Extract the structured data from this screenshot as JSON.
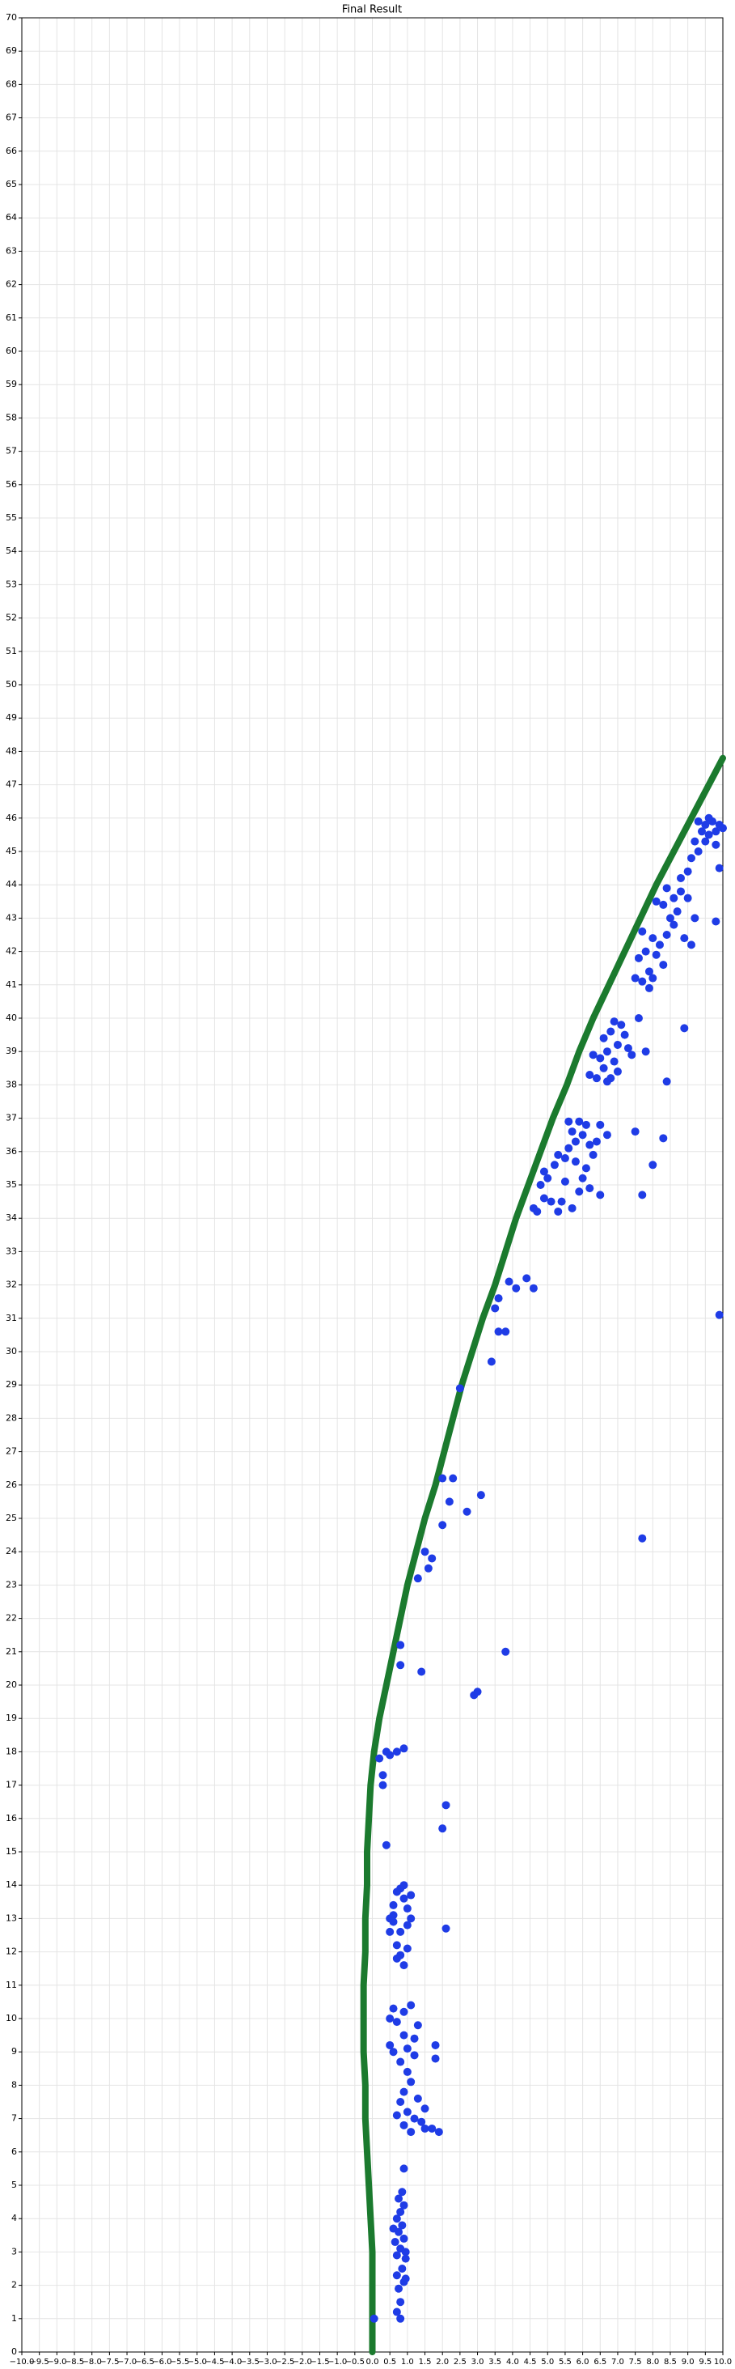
{
  "chart_data": {
    "type": "scatter",
    "title": "Final Result",
    "grid": true,
    "xlim": [
      -10,
      10
    ],
    "ylim": [
      0,
      70
    ],
    "xticks": [
      {
        "value": -10,
        "label": "−10.0"
      },
      {
        "value": -9.5,
        "label": "−9.5"
      },
      {
        "value": -9,
        "label": "−9.0"
      },
      {
        "value": -8.5,
        "label": "−8.5"
      },
      {
        "value": -8,
        "label": "−8.0"
      },
      {
        "value": -7.5,
        "label": "−7.5"
      },
      {
        "value": -7,
        "label": "−7.0"
      },
      {
        "value": -6.5,
        "label": "−6.5"
      },
      {
        "value": -6,
        "label": "−6.0"
      },
      {
        "value": -5.5,
        "label": "−5.5"
      },
      {
        "value": -5,
        "label": "−5.0"
      },
      {
        "value": -4.5,
        "label": "−4.5"
      },
      {
        "value": -4,
        "label": "−4.0"
      },
      {
        "value": -3.5,
        "label": "−3.5"
      },
      {
        "value": -3,
        "label": "−3.0"
      },
      {
        "value": -2.5,
        "label": "−2.5"
      },
      {
        "value": -2,
        "label": "−2.0"
      },
      {
        "value": -1.5,
        "label": "−1.5"
      },
      {
        "value": -1,
        "label": "−1.0"
      },
      {
        "value": -0.5,
        "label": "−0.5"
      },
      {
        "value": 0,
        "label": "0.0"
      },
      0.5,
      {
        "value": 1,
        "label": "1.0"
      },
      1.5,
      {
        "value": 2,
        "label": "2.0"
      },
      2.5,
      {
        "value": 3,
        "label": "3.0"
      },
      3.5,
      {
        "value": 4,
        "label": "4.0"
      },
      4.5,
      {
        "value": 5,
        "label": "5.0"
      },
      5.5,
      {
        "value": 6,
        "label": "6.0"
      },
      6.5,
      {
        "value": 7,
        "label": "7.0"
      },
      7.5,
      {
        "value": 8,
        "label": "8.0"
      },
      8.5,
      {
        "value": 9,
        "label": "9.0"
      },
      9.5,
      {
        "value": 10,
        "label": "10.0"
      }
    ],
    "yticks": [
      0,
      1,
      2,
      3,
      4,
      5,
      6,
      7,
      8,
      9,
      10,
      11,
      12,
      13,
      14,
      15,
      16,
      17,
      18,
      19,
      20,
      21,
      22,
      23,
      24,
      25,
      26,
      27,
      28,
      29,
      30,
      31,
      32,
      33,
      34,
      35,
      36,
      37,
      38,
      39,
      40,
      41,
      42,
      43,
      44,
      45,
      46,
      47,
      48,
      49,
      50,
      51,
      52,
      53,
      54,
      55,
      56,
      57,
      58,
      59,
      60,
      61,
      62,
      63,
      64,
      65,
      66,
      67,
      68,
      69,
      70
    ],
    "series": [
      {
        "type": "line",
        "color": "#1b7a2e",
        "x": [
          0,
          0,
          0,
          0,
          -0.05,
          -0.1,
          -0.15,
          -0.2,
          -0.2,
          -0.25,
          -0.25,
          -0.25,
          -0.2,
          -0.2,
          -0.15,
          -0.15,
          -0.1,
          -0.05,
          0.05,
          0.2,
          0.4,
          0.6,
          0.8,
          1.0,
          1.25,
          1.5,
          1.8,
          2.05,
          2.3,
          2.55,
          2.85,
          3.15,
          3.5,
          3.8,
          4.1,
          4.45,
          4.8,
          5.15,
          5.55,
          5.9,
          6.3,
          6.75,
          7.2,
          7.65,
          8.1,
          8.6,
          9.1,
          9.6,
          10
        ],
        "values": [
          0,
          1,
          2,
          3,
          4,
          5,
          6,
          7,
          8,
          9,
          10,
          11,
          12,
          13,
          14,
          15,
          16,
          17,
          18,
          19,
          20,
          21,
          22,
          23,
          24,
          25,
          26,
          27,
          28,
          29,
          30,
          31,
          32,
          33,
          34,
          35,
          36,
          37,
          38,
          39,
          40,
          41,
          42,
          43,
          44,
          45,
          46,
          47,
          47.8
        ]
      },
      {
        "type": "scatter",
        "color": "#1f3ce6",
        "x": [
          0.7,
          0.8,
          0.75,
          0.9,
          0.7,
          0.85,
          0.95,
          0.7,
          0.8,
          0.65,
          0.9,
          0.75,
          0.85,
          0.7,
          0.8,
          0.9,
          0.75,
          0.85,
          0.95,
          0.6,
          0.95,
          0.8,
          0.9,
          0.05,
          0.6,
          0.5,
          0.7,
          0.9,
          1.1,
          0.5,
          0.6,
          0.9,
          1.0,
          1.2,
          0.8,
          1.0,
          1.1,
          0.9,
          1.3,
          0.8,
          1.0,
          1.2,
          0.9,
          1.1,
          1.4,
          1.5,
          1.7,
          1.9,
          1.8,
          1.8,
          1.5,
          1.3,
          1.2,
          0.7,
          0.5,
          0.6,
          0.7,
          0.8,
          0.9,
          1.0,
          1.1,
          0.6,
          0.8,
          1.0,
          1.1,
          0.5,
          0.7,
          0.8,
          0.9,
          1.0,
          0.7,
          0.6,
          0.9,
          2.1,
          0.4,
          2.0,
          2.1,
          0.3,
          0.3,
          0.2,
          0.4,
          0.5,
          0.7,
          0.9,
          0.8,
          0.8,
          1.4,
          2.9,
          3.0,
          3.8,
          1.3,
          1.5,
          1.6,
          1.7,
          2.0,
          2.2,
          2.3,
          2.7,
          3.1,
          2.0,
          2.5,
          3.4,
          3.6,
          3.8,
          3.5,
          3.6,
          4.1,
          4.4,
          4.6,
          3.9,
          4.6,
          4.7,
          4.9,
          5.1,
          5.3,
          5.4,
          4.8,
          5.0,
          5.2,
          4.9,
          5.3,
          5.5,
          5.6,
          5.8,
          5.7,
          5.9,
          6.0,
          6.2,
          5.6,
          5.8,
          6.1,
          6.3,
          6.0,
          6.2,
          6.5,
          6.7,
          6.4,
          5.5,
          5.9,
          6.5,
          6.1,
          5.7,
          6.2,
          6.4,
          6.6,
          6.8,
          6.5,
          6.7,
          6.9,
          7.0,
          6.6,
          6.8,
          7.1,
          7.2,
          7.0,
          6.3,
          7.3,
          7.6,
          6.9,
          6.7,
          7.4,
          7.5,
          7.7,
          7.9,
          8.0,
          7.6,
          7.8,
          8.1,
          8.3,
          8.0,
          8.2,
          7.7,
          8.4,
          8.5,
          8.3,
          8.6,
          8.8,
          8.4,
          8.7,
          9.0,
          8.1,
          8.6,
          8.9,
          9.1,
          9.2,
          8.8,
          9.0,
          9.1,
          9.3,
          7.9,
          9.2,
          9.4,
          9.5,
          9.6,
          9.7,
          9.8,
          9.9,
          10.0,
          9.5,
          9.8,
          9.3,
          9.6,
          9.9,
          9.8,
          7.7,
          9.9,
          7.7,
          8.0,
          8.3,
          8.4,
          8.9,
          7.5,
          7.8
        ],
        "values": [
          1.2,
          1.5,
          1.9,
          2.1,
          2.3,
          2.5,
          2.8,
          2.9,
          3.1,
          3.3,
          3.4,
          3.6,
          3.8,
          4.0,
          4.2,
          4.4,
          4.6,
          4.8,
          3.0,
          3.7,
          2.2,
          1.0,
          5.5,
          1.0,
          10.3,
          10.0,
          9.9,
          10.2,
          10.4,
          9.2,
          9.0,
          9.5,
          9.1,
          9.4,
          8.7,
          8.4,
          8.1,
          7.8,
          7.6,
          7.5,
          7.2,
          7.0,
          6.8,
          6.6,
          6.9,
          6.7,
          6.7,
          6.6,
          8.8,
          9.2,
          7.3,
          9.8,
          8.9,
          7.1,
          13.0,
          13.4,
          13.8,
          13.9,
          13.6,
          13.3,
          13.7,
          12.9,
          12.6,
          12.8,
          13.0,
          12.6,
          12.2,
          11.9,
          11.6,
          12.1,
          11.8,
          13.1,
          14.0,
          12.7,
          15.2,
          15.7,
          16.4,
          17.0,
          17.3,
          17.8,
          18.0,
          17.9,
          18.0,
          18.1,
          21.2,
          20.6,
          20.4,
          19.7,
          19.8,
          21.0,
          23.2,
          24.0,
          23.5,
          23.8,
          24.8,
          25.5,
          26.2,
          25.2,
          25.7,
          26.2,
          28.9,
          29.7,
          30.6,
          30.6,
          31.3,
          31.6,
          31.9,
          32.2,
          31.9,
          32.1,
          34.3,
          34.2,
          34.6,
          34.5,
          34.2,
          34.5,
          35.0,
          35.2,
          35.6,
          35.4,
          35.9,
          35.8,
          36.1,
          36.3,
          36.6,
          36.9,
          36.5,
          36.2,
          36.9,
          35.7,
          35.5,
          35.9,
          35.2,
          34.9,
          36.8,
          36.5,
          36.3,
          35.1,
          34.8,
          34.7,
          36.8,
          34.3,
          38.3,
          38.2,
          38.5,
          38.2,
          38.8,
          39.0,
          38.7,
          39.2,
          39.4,
          39.6,
          39.8,
          39.5,
          38.4,
          38.9,
          39.1,
          40.0,
          39.9,
          38.1,
          38.9,
          41.2,
          41.1,
          41.4,
          41.2,
          41.8,
          42.0,
          41.9,
          41.6,
          42.4,
          42.2,
          42.6,
          42.5,
          43.0,
          43.4,
          43.6,
          43.8,
          43.9,
          43.2,
          43.6,
          43.5,
          42.8,
          42.4,
          42.2,
          43.0,
          44.2,
          44.4,
          44.8,
          45.0,
          40.9,
          45.3,
          45.6,
          45.8,
          45.5,
          45.9,
          45.6,
          45.8,
          45.7,
          45.3,
          45.2,
          45.9,
          46.0,
          44.5,
          42.9,
          24.4,
          31.1,
          34.7,
          35.6,
          36.4,
          38.1,
          39.7,
          36.6,
          39.0
        ]
      }
    ]
  }
}
